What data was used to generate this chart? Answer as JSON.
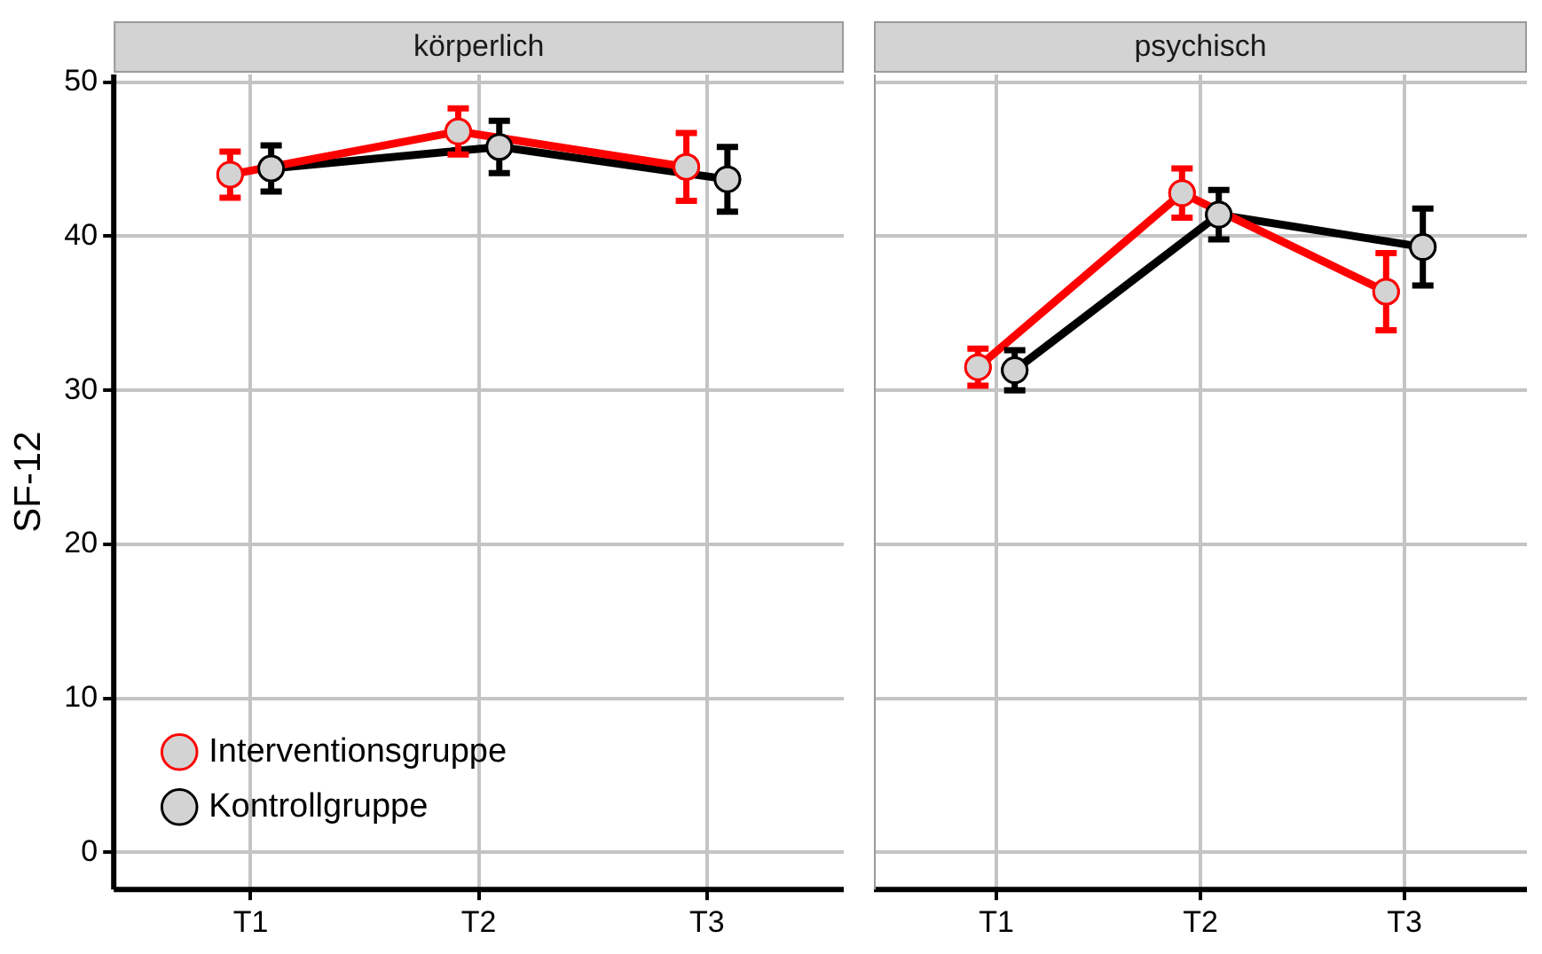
{
  "chart_data": [
    {
      "type": "line",
      "title": "körperlich",
      "ylabel": "SF-12",
      "categories": [
        "T1",
        "T2",
        "T3"
      ],
      "ylim": [
        -2.4,
        50.5
      ],
      "yticks": [
        0,
        10,
        20,
        30,
        40,
        50
      ],
      "grid": true,
      "legend": "bottom left",
      "marker": "circle",
      "series": [
        {
          "name": "Interventionsgruppe",
          "color": "#ff0000",
          "values": [
            44.0,
            46.8,
            44.5
          ],
          "errors": [
            1.5,
            1.5,
            2.2
          ]
        },
        {
          "name": "Kontrollgruppe",
          "color": "#000000",
          "values": [
            44.4,
            45.8,
            43.7
          ],
          "errors": [
            1.5,
            1.7,
            2.1
          ]
        }
      ]
    },
    {
      "type": "line",
      "title": "psychisch",
      "categories": [
        "T1",
        "T2",
        "T3"
      ],
      "ylim": [
        -2.4,
        50.5
      ],
      "yticks": [
        0,
        10,
        20,
        30,
        40,
        50
      ],
      "tick_labels": "x",
      "grid": true,
      "marker": "circle",
      "series": [
        {
          "color": "#ff0000",
          "values": [
            31.5,
            42.8,
            36.4
          ],
          "errors": [
            1.2,
            1.6,
            2.5
          ]
        },
        {
          "color": "#000000",
          "values": [
            31.3,
            41.4,
            39.3
          ],
          "errors": [
            1.3,
            1.6,
            2.5
          ]
        }
      ]
    }
  ]
}
